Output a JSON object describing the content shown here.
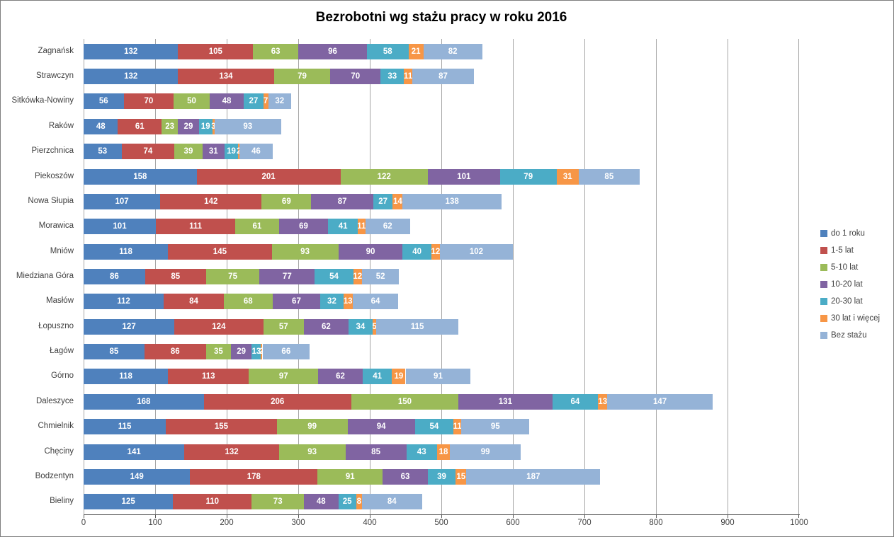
{
  "title": "Bezrobotni wg stażu pracy w roku 2016",
  "chart_data": {
    "type": "bar",
    "orientation": "horizontal",
    "stacked": true,
    "title": "Bezrobotni wg stażu pracy w roku 2016",
    "xlabel": "",
    "ylabel": "",
    "xlim": [
      0,
      1000
    ],
    "x_ticks": [
      0,
      100,
      200,
      300,
      400,
      500,
      600,
      700,
      800,
      900,
      1000
    ],
    "grid": true,
    "legend_position": "right",
    "categories": [
      "Zagnańsk",
      "Strawczyn",
      "Sitkówka-Nowiny",
      "Raków",
      "Pierzchnica",
      "Piekoszów",
      "Nowa Słupia",
      "Morawica",
      "Mniów",
      "Miedziana Góra",
      "Masłów",
      "Łopuszno",
      "Łagów",
      "Górno",
      "Daleszyce",
      "Chmielnik",
      "Chęciny",
      "Bodzentyn",
      "Bieliny"
    ],
    "series": [
      {
        "name": "do 1 roku",
        "color": "#4F81BD",
        "values": [
          132,
          132,
          56,
          48,
          53,
          158,
          107,
          101,
          118,
          86,
          112,
          127,
          85,
          118,
          168,
          115,
          141,
          149,
          125
        ]
      },
      {
        "name": "1-5 lat",
        "color": "#C0504D",
        "values": [
          105,
          134,
          70,
          61,
          74,
          201,
          142,
          111,
          145,
          85,
          84,
          124,
          86,
          113,
          206,
          155,
          132,
          178,
          110
        ]
      },
      {
        "name": "5-10 lat",
        "color": "#9BBB59",
        "values": [
          63,
          79,
          50,
          23,
          39,
          122,
          69,
          61,
          93,
          75,
          68,
          57,
          35,
          97,
          150,
          99,
          93,
          91,
          73
        ]
      },
      {
        "name": "10-20 lat",
        "color": "#8064A2",
        "values": [
          96,
          70,
          48,
          29,
          31,
          101,
          87,
          69,
          90,
          77,
          67,
          62,
          29,
          62,
          131,
          94,
          85,
          63,
          48
        ]
      },
      {
        "name": "20-30 lat",
        "color": "#4BACC6",
        "values": [
          58,
          33,
          27,
          19,
          19,
          79,
          27,
          41,
          40,
          54,
          32,
          34,
          13,
          41,
          64,
          54,
          43,
          39,
          25
        ]
      },
      {
        "name": "30 lat i więcej",
        "color": "#F79646",
        "values": [
          21,
          11,
          7,
          3,
          2,
          31,
          14,
          11,
          12,
          12,
          13,
          5,
          2,
          19,
          13,
          11,
          18,
          15,
          8
        ]
      },
      {
        "name": "Bez stażu",
        "color": "#95B3D7",
        "values": [
          82,
          87,
          32,
          93,
          46,
          85,
          138,
          62,
          102,
          52,
          64,
          115,
          66,
          91,
          147,
          95,
          99,
          187,
          84
        ]
      }
    ],
    "style": {
      "grid_color": "#A6A6A6",
      "axis_color": "#595959",
      "tick_label_color": "#3F3F3F",
      "category_label_color": "#3F3F3F",
      "bar_value_label_color": "#FFFFFF",
      "background_color": "#FFFFFF",
      "border_color": "#7F7F7F"
    }
  }
}
